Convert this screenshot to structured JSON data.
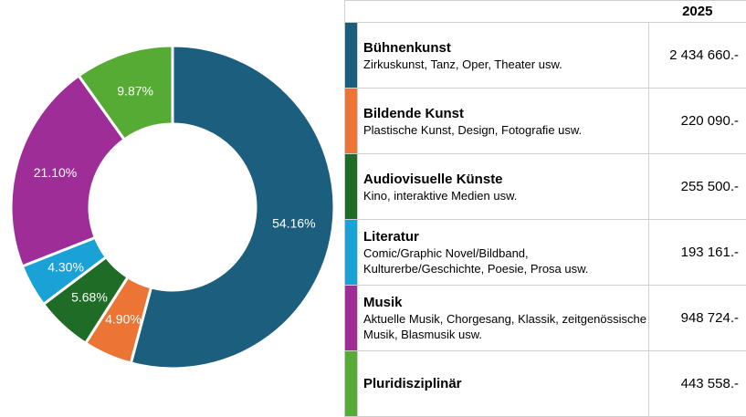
{
  "chart_data": {
    "type": "pie",
    "variant": "donut",
    "legend": "table-right",
    "year": "2025",
    "categories": [
      {
        "name": "Bühnenkunst",
        "subtitle": "Zirkuskunst, Tanz, Oper, Theater usw.",
        "amount": "2 434 660.-",
        "value": 2434660,
        "percent": "54.16%",
        "color": "#1b5e7e"
      },
      {
        "name": "Bildende Kunst",
        "subtitle": "Plastische Kunst, Design, Fotografie usw.",
        "amount": "220 090.-",
        "value": 220090,
        "percent": "4.90%",
        "color": "#ec7535"
      },
      {
        "name": "Audiovisuelle Künste",
        "subtitle": "Kino, interaktive Medien usw.",
        "amount": "255 500.-",
        "value": 255500,
        "percent": "5.68%",
        "color": "#1e6c25"
      },
      {
        "name": "Literatur",
        "subtitle": "Comic/Graphic Novel/Bildband, Kulturerbe/Geschichte, Poesie, Prosa usw.",
        "amount": "193 161.-",
        "value": 193161,
        "percent": "4.30%",
        "color": "#1aa2d6"
      },
      {
        "name": "Musik",
        "subtitle": "Aktuelle Musik, Chorgesang, Klassik, zeitgenössische Musik, Blasmusik usw.",
        "amount": "948 724.-",
        "value": 948724,
        "percent": "21.10%",
        "color": "#9e2d97"
      },
      {
        "name": "Pluridisziplinär",
        "subtitle": "",
        "amount": "443 558.-",
        "value": 443558,
        "percent": "9.87%",
        "color": "#56ab34"
      }
    ]
  }
}
